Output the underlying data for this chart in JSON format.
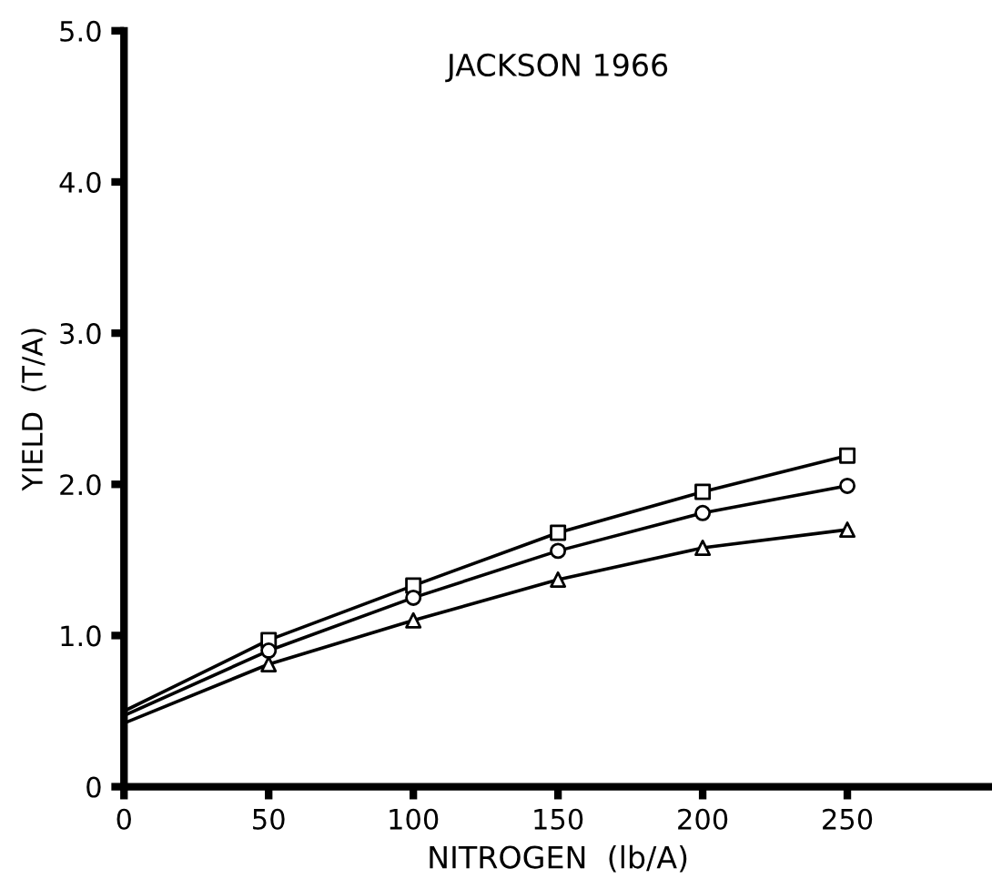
{
  "chart_data": {
    "type": "line",
    "title": "JACKSON 1966",
    "xlabel": "NITROGEN  (lb/A)",
    "ylabel": "YIELD  (T/A)",
    "xlim": [
      0,
      300
    ],
    "ylim": [
      0,
      5
    ],
    "xticks": [
      0,
      50,
      100,
      150,
      200,
      250
    ],
    "yticks": [
      0,
      {
        "value": 1,
        "label": "1.0"
      },
      {
        "value": 2,
        "label": "2.0"
      },
      {
        "value": 3,
        "label": "3.0"
      },
      {
        "value": 4,
        "label": "4.0"
      },
      {
        "value": 5,
        "label": "5.0"
      }
    ],
    "grid": false,
    "legend": false,
    "series": [
      {
        "color": "#000000",
        "marker": "none",
        "x": [
          0,
          50,
          100,
          150,
          200,
          250
        ],
        "values": [
          0.5,
          0.97,
          1.33,
          1.68,
          1.95,
          2.19
        ]
      },
      {
        "color": "#000000",
        "marker": "none",
        "x": [
          0,
          50,
          100,
          150,
          200,
          250
        ],
        "values": [
          0.47,
          0.9,
          1.25,
          1.56,
          1.81,
          1.99
        ]
      },
      {
        "color": "#000000",
        "marker": "none",
        "x": [
          0,
          50,
          100,
          150,
          200,
          250
        ],
        "values": [
          0.42,
          0.81,
          1.1,
          1.37,
          1.58,
          1.7
        ]
      },
      {
        "type": "scatter",
        "color": "#000000",
        "marker": "square",
        "x": [
          50,
          100,
          150,
          200,
          250
        ],
        "values": [
          0.97,
          1.33,
          1.68,
          1.95,
          2.19
        ]
      },
      {
        "type": "scatter",
        "color": "#000000",
        "marker": "circle",
        "x": [
          50,
          100,
          150,
          200,
          250
        ],
        "values": [
          0.9,
          1.25,
          1.56,
          1.81,
          1.99
        ]
      },
      {
        "type": "scatter",
        "color": "#000000",
        "marker": "triangle",
        "x": [
          50,
          100,
          150,
          200,
          250
        ],
        "values": [
          0.81,
          1.1,
          1.37,
          1.58,
          1.7
        ]
      }
    ]
  }
}
